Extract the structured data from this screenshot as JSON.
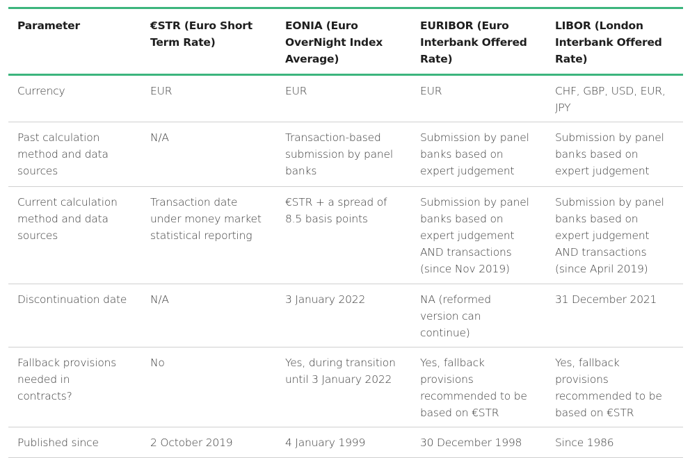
{
  "table": {
    "header": [
      "Parameter",
      "€STR (Euro Short Term Rate)",
      "EONIA (Euro OverNight Index Average)",
      "EURIBOR (Euro Interbank Offered Rate)",
      "LIBOR (London Interbank Offered Rate)"
    ],
    "rows": [
      [
        "Currency",
        "EUR",
        "EUR",
        "EUR",
        "CHF, GBP, USD, EUR, JPY"
      ],
      [
        "Past calculation method and data sources",
        "N/A",
        "Transaction-based submission by panel banks",
        "Submission by panel banks based on expert judgement",
        "Submission by panel banks based on expert judgement"
      ],
      [
        "Current calculation method and data sources",
        "Transaction date under money market statistical reporting",
        "€STR + a spread of 8.5 basis points",
        "Submission by panel banks based on expert judgement AND transactions (since Nov 2019)",
        "Submission by panel banks based on expert judgement AND transactions (since April 2019)"
      ],
      [
        "Discontinuation date",
        "N/A",
        "3 January 2022",
        "NA (reformed version can continue)",
        "31 December 2021"
      ],
      [
        "Fallback provisions needed in contracts?",
        "No",
        "Yes, during transition until 3 January 2022",
        "Yes, fallback provisions recommended to be based on €STR",
        "Yes, fallback provisions recommended to be based on €STR"
      ],
      [
        "Published since",
        "2 October 2019",
        "4 January 1999",
        "30 December 1998",
        "Since 1986"
      ]
    ]
  }
}
